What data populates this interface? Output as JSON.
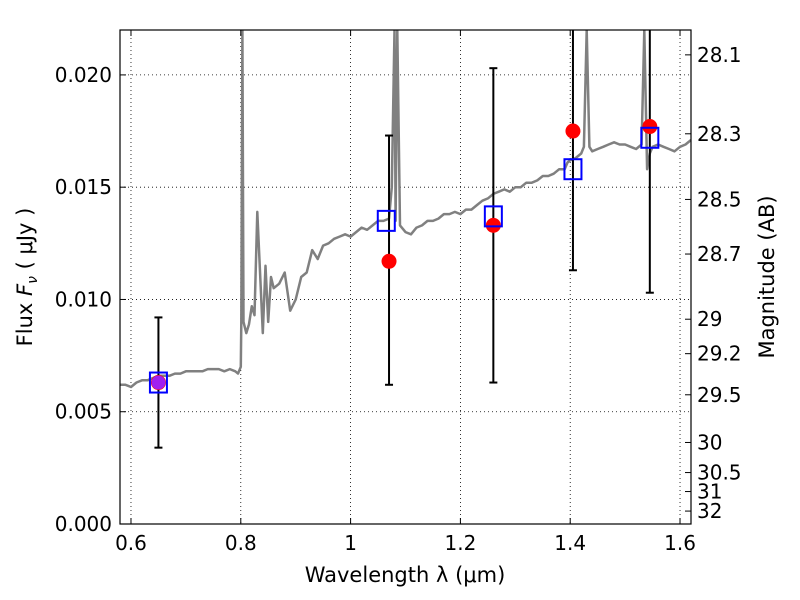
{
  "chart_data": {
    "type": "scatter",
    "xlabel": "Wavelength  λ (μm)",
    "ylabel_parts": {
      "prefix": "Flux  ",
      "symbol": "F",
      "subscript": "ν",
      "unit": "  ( μJy )"
    },
    "y2label": "Magnitude (AB)",
    "xlim": [
      0.58,
      1.62
    ],
    "ylim": [
      0.0,
      0.022
    ],
    "x_ticks": [
      {
        "value": 0.6,
        "label": "0.6"
      },
      {
        "value": 0.8,
        "label": "0.8"
      },
      {
        "value": 1.0,
        "label": "1"
      },
      {
        "value": 1.2,
        "label": "1.2"
      },
      {
        "value": 1.4,
        "label": "1.4"
      },
      {
        "value": 1.6,
        "label": "1.6"
      }
    ],
    "y_ticks": [
      {
        "value": 0.0,
        "label": "0.000"
      },
      {
        "value": 0.005,
        "label": "0.005"
      },
      {
        "value": 0.01,
        "label": "0.010"
      },
      {
        "value": 0.015,
        "label": "0.015"
      },
      {
        "value": 0.02,
        "label": "0.020"
      }
    ],
    "y2_ticks": [
      {
        "mag": 28.1,
        "label": "28.1"
      },
      {
        "mag": 28.3,
        "label": "28.3"
      },
      {
        "mag": 28.5,
        "label": "28.5"
      },
      {
        "mag": 28.7,
        "label": "28.7"
      },
      {
        "mag": 29,
        "label": "29"
      },
      {
        "mag": 29.2,
        "label": "29.2"
      },
      {
        "mag": 29.5,
        "label": "29.5"
      },
      {
        "mag": 30,
        "label": "30"
      },
      {
        "mag": 30.5,
        "label": "30.5"
      },
      {
        "mag": 31,
        "label": "31"
      },
      {
        "mag": 32,
        "label": "32"
      }
    ],
    "grid": true,
    "colors": {
      "template": "#808080",
      "observed": "#ff0000",
      "model": "#0000ff",
      "overlap": "#a020f0",
      "errorbar": "#000000"
    },
    "series": [
      {
        "kind": "template_spectrum",
        "x": [
          0.58,
          0.59,
          0.6,
          0.61,
          0.62,
          0.63,
          0.64,
          0.65,
          0.66,
          0.67,
          0.68,
          0.69,
          0.7,
          0.71,
          0.72,
          0.73,
          0.74,
          0.75,
          0.76,
          0.77,
          0.78,
          0.79,
          0.795,
          0.8,
          0.801,
          0.803,
          0.805,
          0.81,
          0.815,
          0.82,
          0.825,
          0.83,
          0.84,
          0.845,
          0.85,
          0.855,
          0.86,
          0.87,
          0.88,
          0.89,
          0.9,
          0.91,
          0.92,
          0.93,
          0.94,
          0.95,
          0.96,
          0.97,
          0.98,
          0.99,
          1.0,
          1.01,
          1.02,
          1.03,
          1.04,
          1.05,
          1.06,
          1.07,
          1.075,
          1.08,
          1.082,
          1.085,
          1.09,
          1.1,
          1.11,
          1.12,
          1.13,
          1.14,
          1.15,
          1.16,
          1.17,
          1.18,
          1.19,
          1.2,
          1.21,
          1.22,
          1.23,
          1.24,
          1.25,
          1.26,
          1.27,
          1.28,
          1.29,
          1.3,
          1.31,
          1.32,
          1.33,
          1.34,
          1.35,
          1.36,
          1.37,
          1.38,
          1.39,
          1.395,
          1.4,
          1.41,
          1.42,
          1.425,
          1.43,
          1.435,
          1.44,
          1.45,
          1.46,
          1.47,
          1.48,
          1.49,
          1.5,
          1.51,
          1.52,
          1.53,
          1.535,
          1.54,
          1.545,
          1.55,
          1.56,
          1.57,
          1.58,
          1.59,
          1.6,
          1.61,
          1.62
        ],
        "y": [
          0.0062,
          0.0062,
          0.0061,
          0.0063,
          0.0064,
          0.0064,
          0.0065,
          0.0066,
          0.0066,
          0.0066,
          0.0067,
          0.0067,
          0.0068,
          0.0068,
          0.0068,
          0.0068,
          0.0069,
          0.0069,
          0.0069,
          0.0068,
          0.0069,
          0.0068,
          0.0067,
          0.007,
          0.009,
          0.022,
          0.009,
          0.0085,
          0.0089,
          0.0097,
          0.0093,
          0.0139,
          0.0085,
          0.0115,
          0.009,
          0.011,
          0.0105,
          0.0107,
          0.0112,
          0.0095,
          0.01,
          0.011,
          0.0112,
          0.0122,
          0.0118,
          0.0124,
          0.0125,
          0.0127,
          0.0128,
          0.0129,
          0.0128,
          0.013,
          0.0132,
          0.0131,
          0.0133,
          0.0135,
          0.0135,
          0.0136,
          0.015,
          0.022,
          0.0135,
          0.022,
          0.0133,
          0.013,
          0.0129,
          0.0132,
          0.0133,
          0.0135,
          0.0135,
          0.0136,
          0.0138,
          0.0138,
          0.0139,
          0.0138,
          0.014,
          0.014,
          0.0142,
          0.0144,
          0.0145,
          0.0147,
          0.0148,
          0.0149,
          0.0148,
          0.015,
          0.015,
          0.0152,
          0.0152,
          0.0153,
          0.0155,
          0.0155,
          0.0156,
          0.0158,
          0.0158,
          0.0161,
          0.0162,
          0.0163,
          0.0165,
          0.0168,
          0.022,
          0.0168,
          0.0166,
          0.0167,
          0.0168,
          0.0169,
          0.017,
          0.0169,
          0.0169,
          0.0168,
          0.0167,
          0.0169,
          0.022,
          0.0158,
          0.0165,
          0.0168,
          0.0169,
          0.0168,
          0.0167,
          0.0166,
          0.0168,
          0.0169,
          0.0171
        ]
      },
      {
        "kind": "observed_with_errors",
        "points": [
          {
            "x": 0.65,
            "y": 0.0063,
            "yerr_low": 0.0034,
            "yerr_high": 0.0092
          },
          {
            "x": 1.07,
            "y": 0.0117,
            "yerr_low": 0.0062,
            "yerr_high": 0.0173
          },
          {
            "x": 1.26,
            "y": 0.0133,
            "yerr_low": 0.0063,
            "yerr_high": 0.0203
          },
          {
            "x": 1.405,
            "y": 0.0175,
            "yerr_low": 0.0113,
            "yerr_high": 0.0225
          },
          {
            "x": 1.545,
            "y": 0.0177,
            "yerr_low": 0.0103,
            "yerr_high": 0.0225
          }
        ]
      },
      {
        "kind": "model_photometry",
        "points": [
          {
            "x": 0.65,
            "y": 0.0063
          },
          {
            "x": 1.065,
            "y": 0.0135
          },
          {
            "x": 1.26,
            "y": 0.0137
          },
          {
            "x": 1.405,
            "y": 0.0158
          },
          {
            "x": 1.545,
            "y": 0.0172
          }
        ]
      }
    ]
  }
}
